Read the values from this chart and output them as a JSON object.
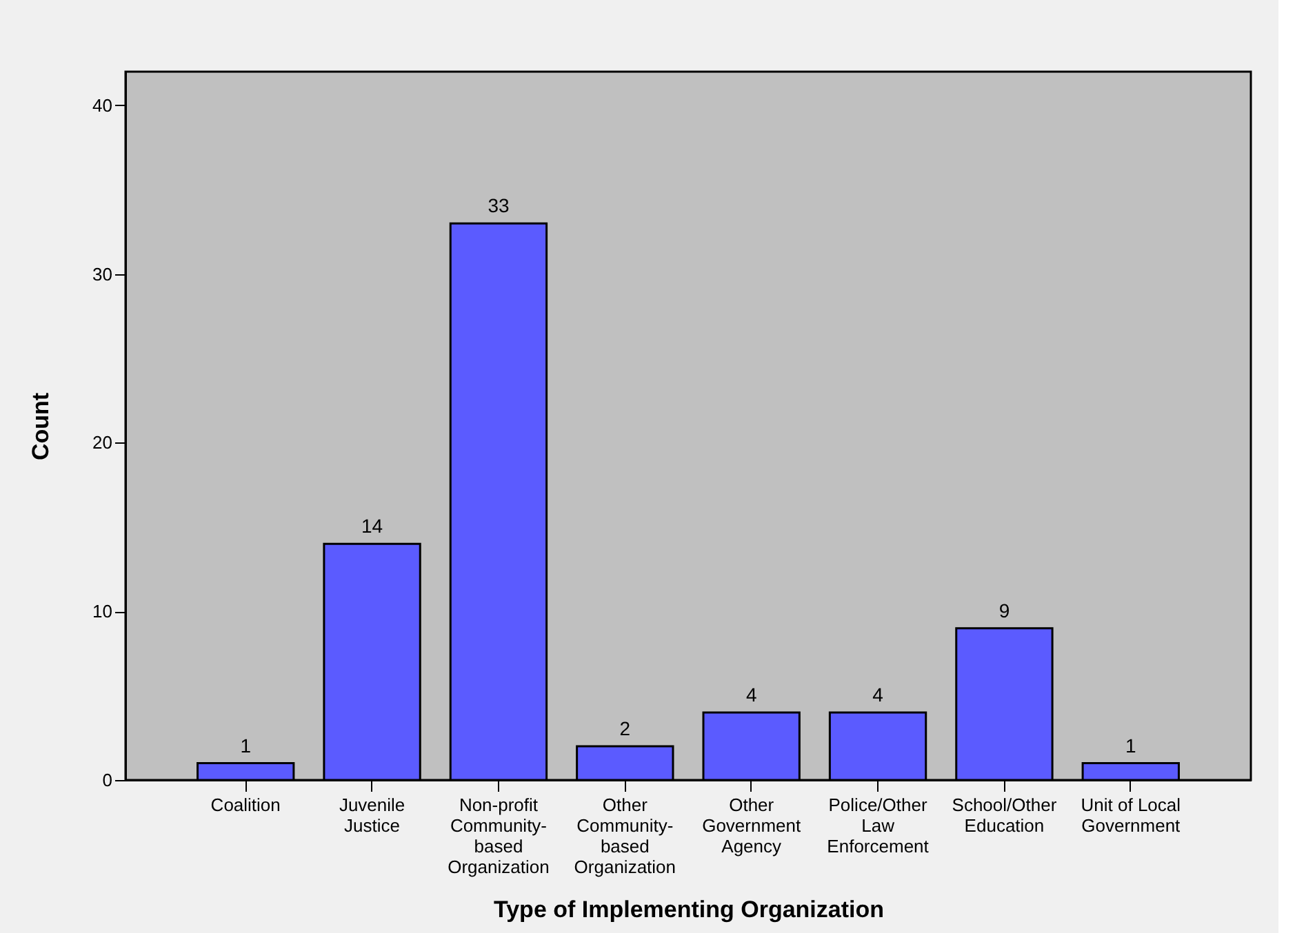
{
  "chart_data": {
    "type": "bar",
    "xlabel": "Type of Implementing Organization",
    "ylabel": "Count",
    "categories": [
      "Coalition",
      "Juvenile Justice",
      "Non-profit Community-based Organization",
      "Other Community-based Organization",
      "Other Government Agency",
      "Police/Other Law Enforcement",
      "School/Other Education",
      "Unit of Local Government"
    ],
    "values": [
      1,
      14,
      33,
      2,
      4,
      4,
      9,
      1
    ],
    "color": "#5b5bff",
    "ylim": [
      0,
      42
    ],
    "yticks": [
      0,
      10,
      20,
      30,
      40
    ],
    "grid": false,
    "data_labels": true
  }
}
